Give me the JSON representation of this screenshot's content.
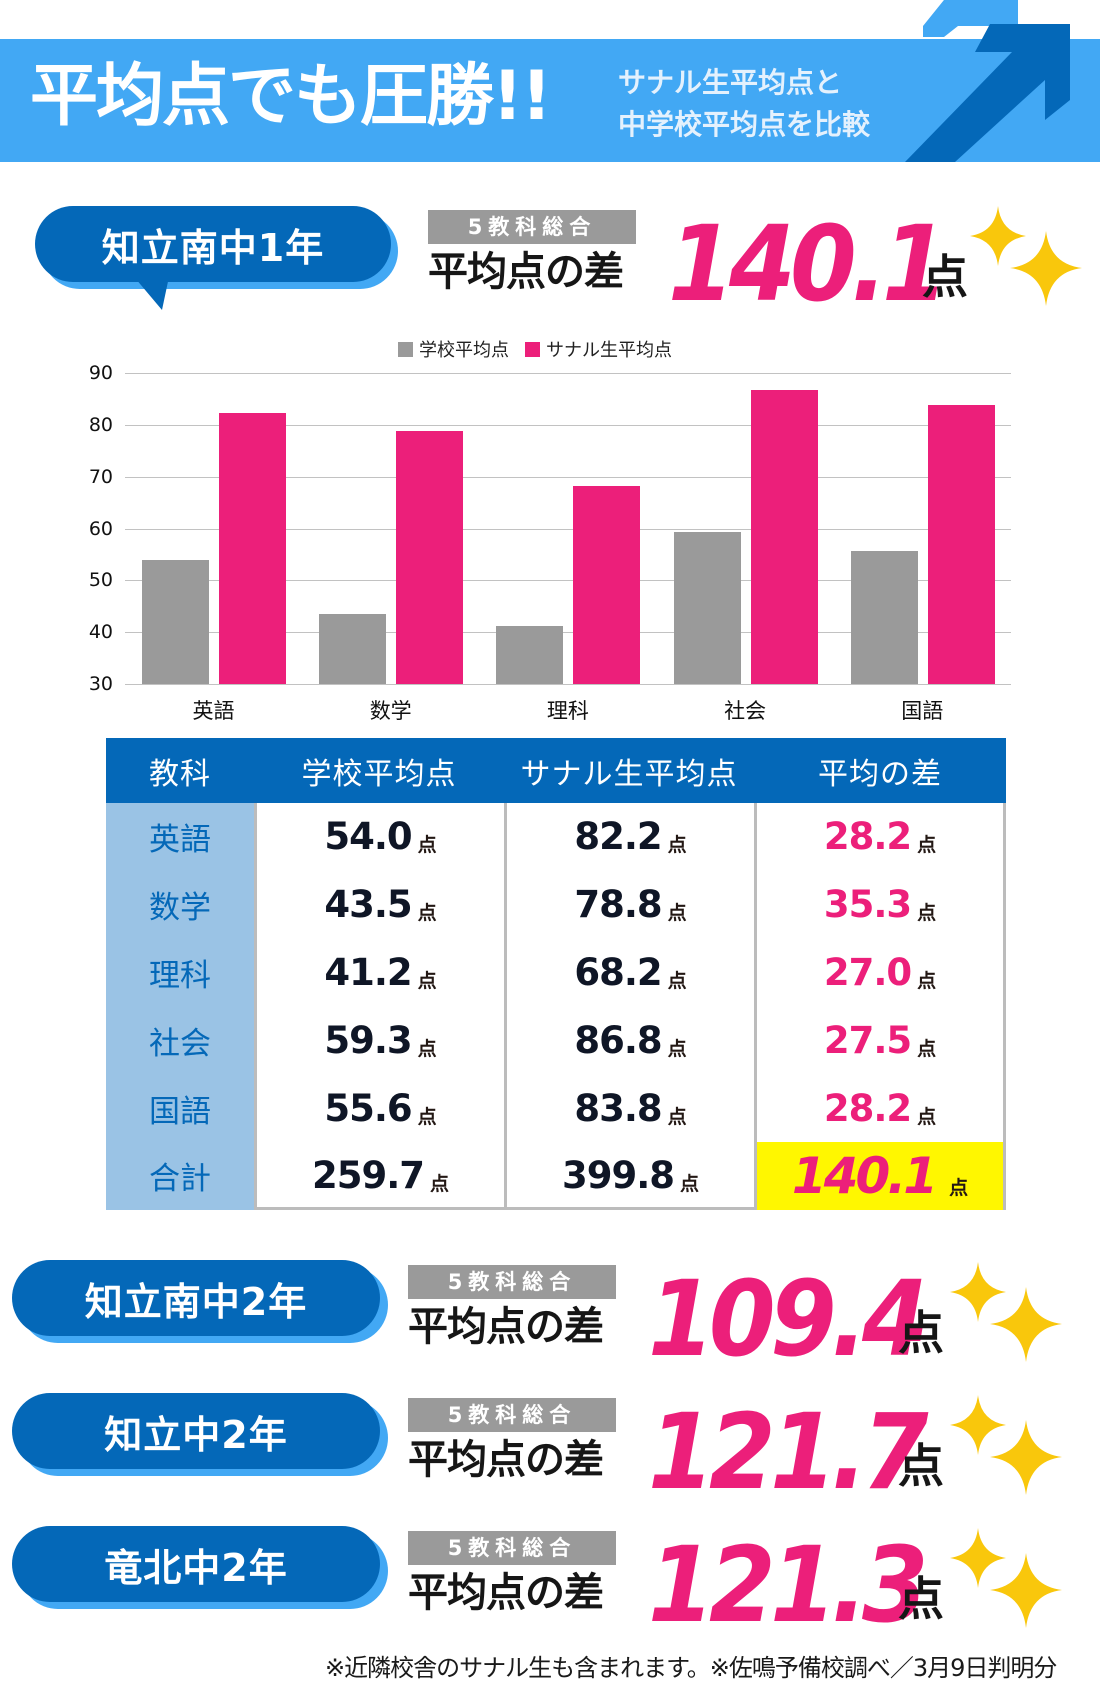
{
  "header": {
    "title": "平均点でも圧勝!!",
    "subtitle_line1": "サナル生平均点と",
    "subtitle_line2": "中学校平均点を比較",
    "band_color": "#42a8f4",
    "arrow_color": "#0468b8"
  },
  "sections": [
    {
      "school": "知立南中1年",
      "label_top": "5教科総合",
      "label_main": "平均点の差",
      "value": "140.1",
      "unit": "点"
    },
    {
      "school": "知立南中2年",
      "label_top": "5教科総合",
      "label_main": "平均点の差",
      "value": "109.4",
      "unit": "点"
    },
    {
      "school": "知立中2年",
      "label_top": "5教科総合",
      "label_main": "平均点の差",
      "value": "121.7",
      "unit": "点"
    },
    {
      "school": "竜北中2年",
      "label_top": "5教科総合",
      "label_main": "平均点の差",
      "value": "121.3",
      "unit": "点"
    }
  ],
  "chart_data": {
    "type": "bar",
    "title": "",
    "xlabel": "",
    "ylabel": "",
    "categories": [
      "英語",
      "数学",
      "理科",
      "社会",
      "国語"
    ],
    "series": [
      {
        "name": "学校平均点",
        "color": "#9a9a9a",
        "values": [
          54.0,
          43.5,
          41.2,
          59.3,
          55.6
        ]
      },
      {
        "name": "サナル生平均点",
        "color": "#ec1f7a",
        "values": [
          82.2,
          78.8,
          68.2,
          86.8,
          83.8
        ]
      }
    ],
    "ylim": [
      30,
      90
    ],
    "yticks": [
      "90",
      "80",
      "70",
      "60",
      "50",
      "40",
      "30"
    ],
    "grid": true,
    "legend_position": "top"
  },
  "table": {
    "headers": [
      "教科",
      "学校平均点",
      "サナル生平均点",
      "平均の差"
    ],
    "unit": "点",
    "rows": [
      {
        "subject": "英語",
        "school": "54.0",
        "sanaru": "82.2",
        "diff": "28.2"
      },
      {
        "subject": "数学",
        "school": "43.5",
        "sanaru": "78.8",
        "diff": "35.3"
      },
      {
        "subject": "理科",
        "school": "41.2",
        "sanaru": "68.2",
        "diff": "27.0"
      },
      {
        "subject": "社会",
        "school": "59.3",
        "sanaru": "86.8",
        "diff": "27.5"
      },
      {
        "subject": "国語",
        "school": "55.6",
        "sanaru": "83.8",
        "diff": "28.2"
      },
      {
        "subject": "合計",
        "school": "259.7",
        "sanaru": "399.8",
        "diff": "140.1"
      }
    ]
  },
  "footer": {
    "note": "※近隣校舎のサナル生も含まれます。※佐鳴予備校調べ／3月9日判明分"
  }
}
